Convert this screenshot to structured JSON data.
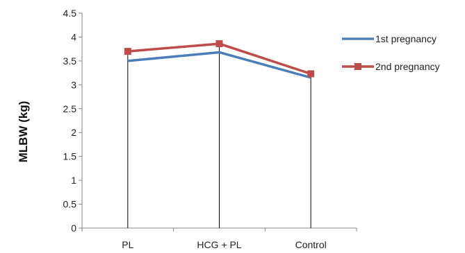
{
  "chart_data": {
    "type": "line",
    "title": "",
    "xlabel": "",
    "ylabel": "MLBW (kg)",
    "categories": [
      "PL",
      "HCG + PL",
      "Control"
    ],
    "ylim": [
      0,
      4.5
    ],
    "yticks": [
      "0",
      "0.5",
      "1",
      "1.5",
      "2",
      "2.5",
      "3",
      "3.5",
      "4",
      "4.5"
    ],
    "grid": false,
    "drop_lines": true,
    "legend_position": "right",
    "series": [
      {
        "name": "1st pregnancy",
        "values": [
          3.5,
          3.68,
          3.15
        ],
        "color": "#4a7ebb",
        "marker": "none"
      },
      {
        "name": "2nd pregnancy",
        "values": [
          3.7,
          3.86,
          3.23
        ],
        "color": "#be4b48",
        "marker": "square"
      }
    ]
  }
}
